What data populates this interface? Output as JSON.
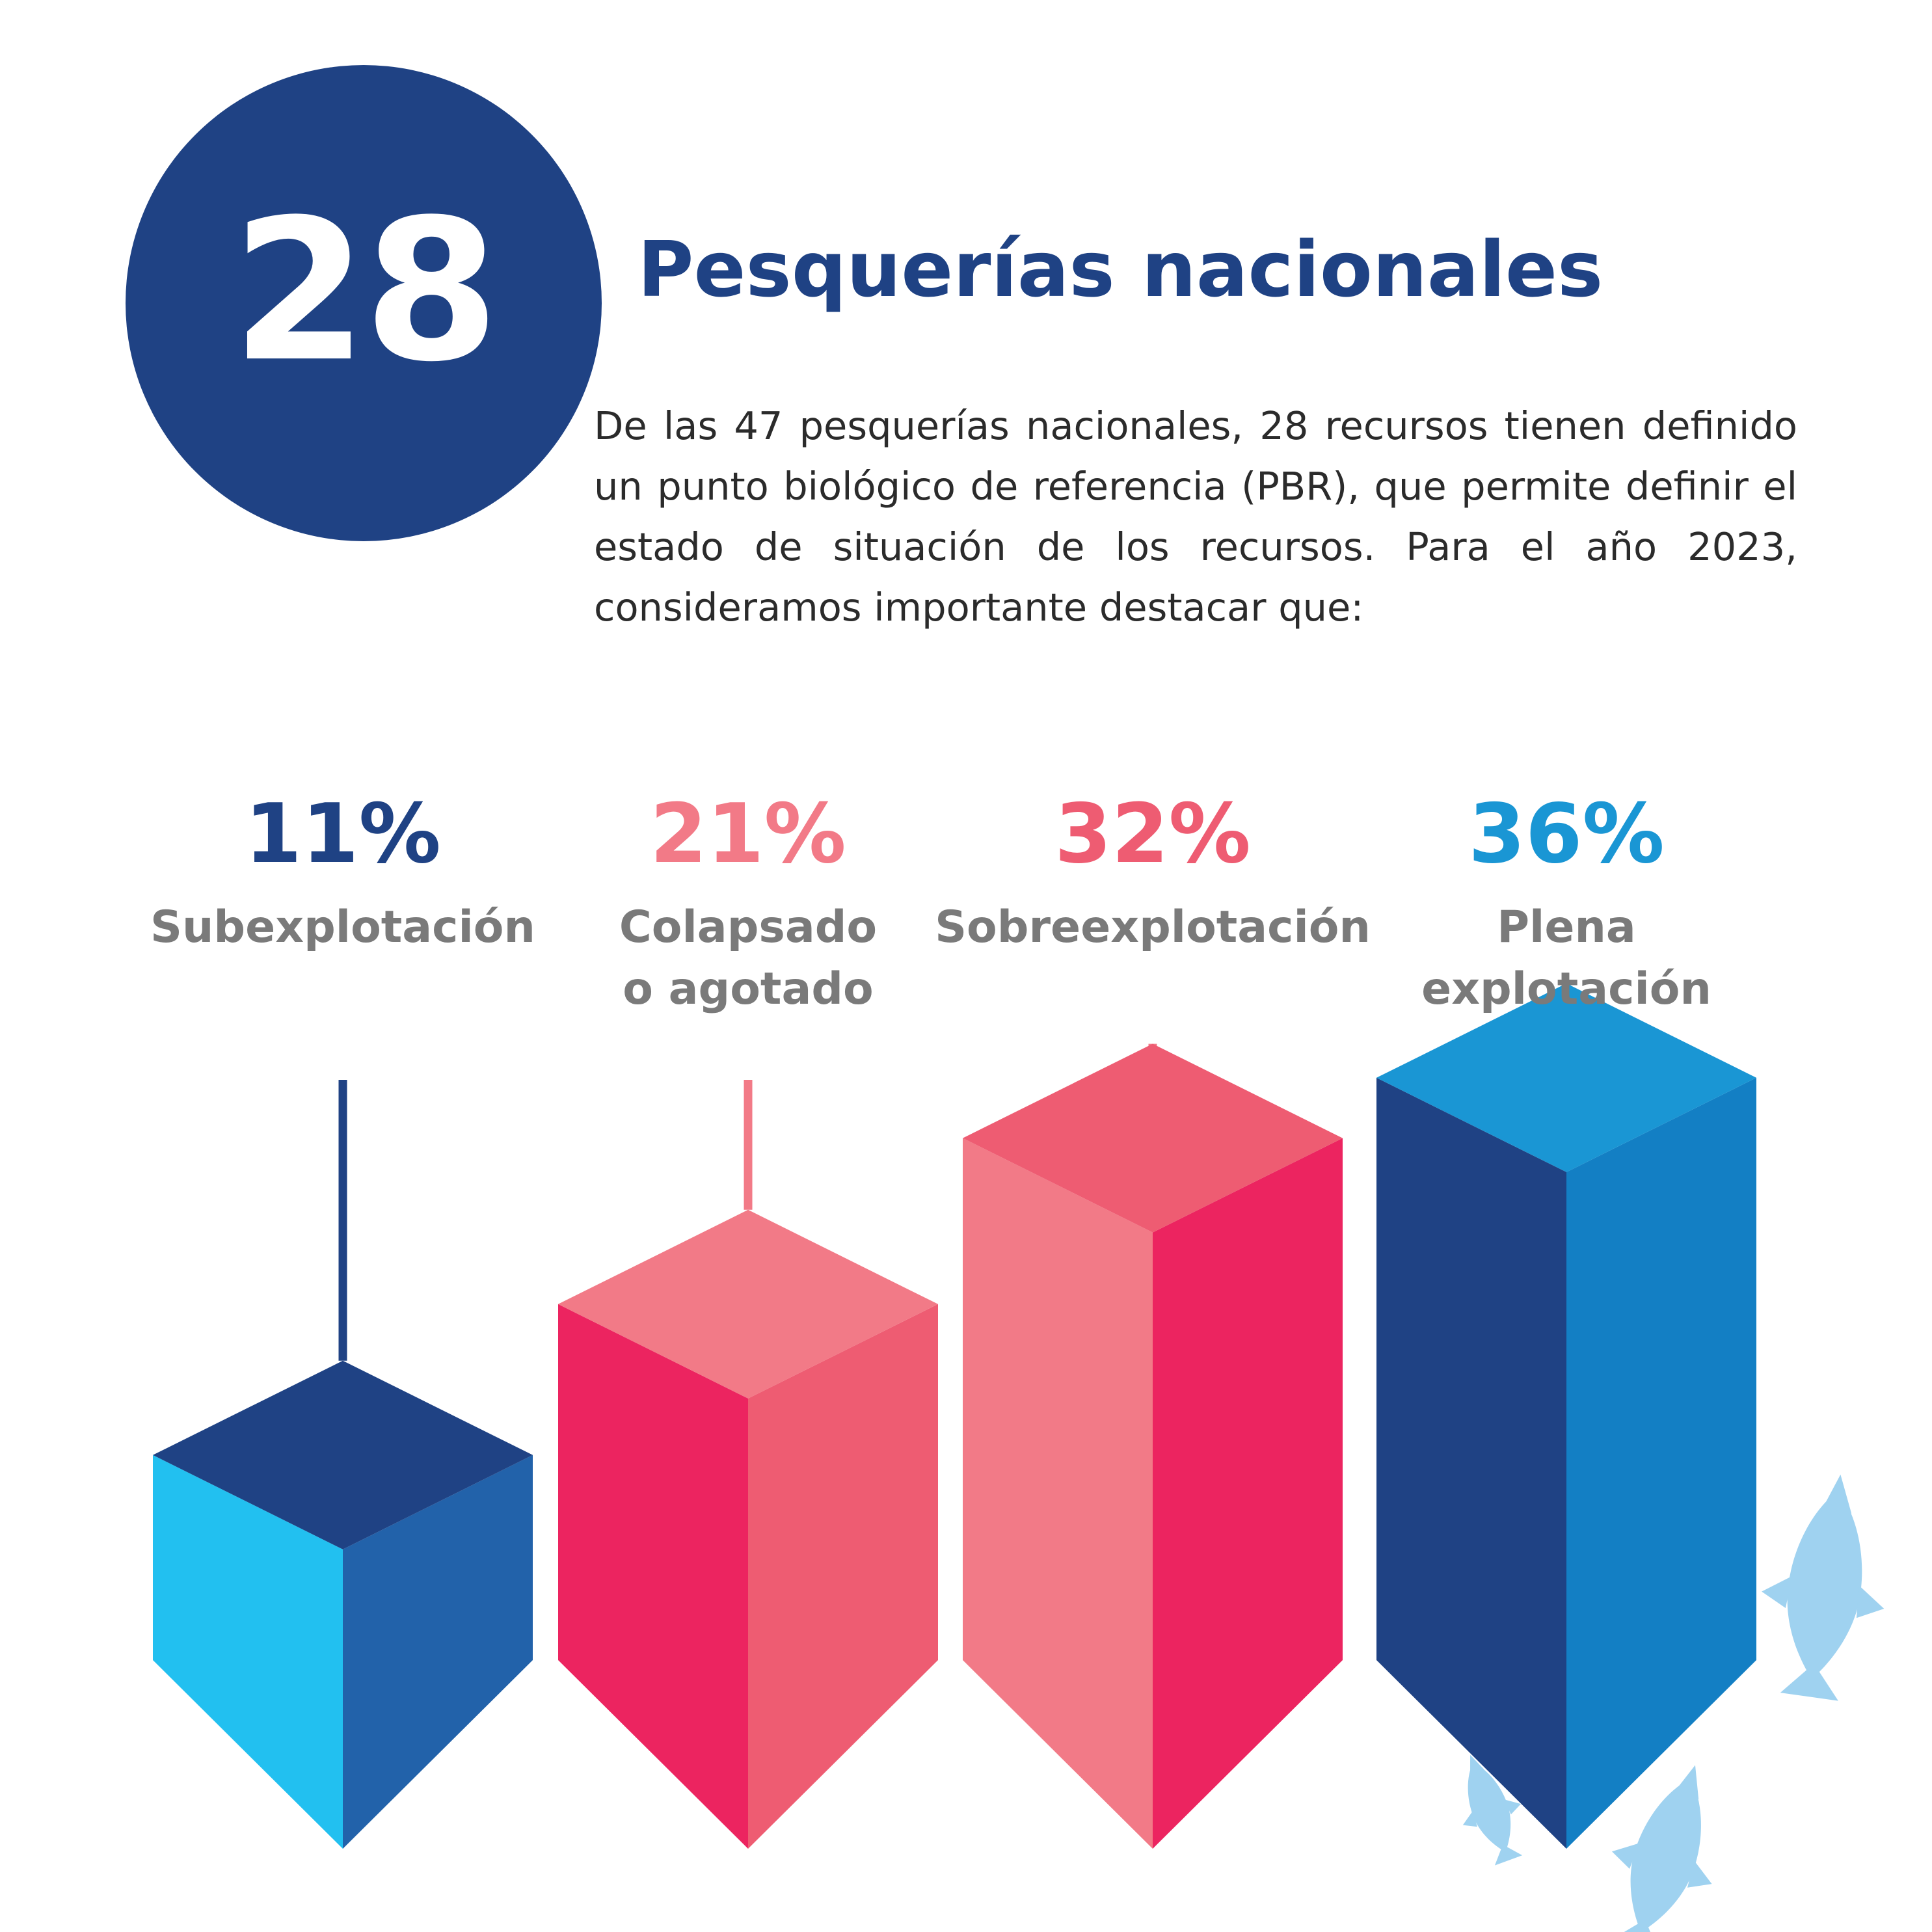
{
  "header": {
    "number": "28",
    "title": "Pesquerías nacionales",
    "description": "De las 47 pesquerías nacionales, 28 recursos tienen definido un punto biológico de referencia (PBR), que permite definir el estado de situación de los recursos. Para el año 2023, consideramos importante destacar que:"
  },
  "colors": {
    "navy": "#1f4284",
    "pink": "#f27a87",
    "red": "#ee5c72",
    "blue": "#1a96d4",
    "label_gray": "#7a7a7a",
    "fish": "#9fd2f0"
  },
  "chart_data": {
    "type": "bar",
    "categories": [
      "Subexplotación",
      "Colapsado o agotado",
      "Sobreexplotación",
      "Plena explotación"
    ],
    "category_lines": [
      [
        "Subexplotación"
      ],
      [
        "Colapsado",
        "o agotado"
      ],
      [
        "Sobreexplotación"
      ],
      [
        "Plena",
        "explotación"
      ]
    ],
    "values": [
      11,
      21,
      32,
      36
    ],
    "value_labels": [
      "11%",
      "21%",
      "32%",
      "36%"
    ],
    "unit": "%",
    "legend": "none",
    "grid": false,
    "palettes": [
      {
        "label": "#1f4284",
        "line": "#1f4284",
        "top": "#1f4284",
        "left": "#22c0f0",
        "right": "#2262aa"
      },
      {
        "label": "#f27a87",
        "line": "#f27a87",
        "top": "#f27a87",
        "left": "#ec2460",
        "right": "#ee5c72"
      },
      {
        "label": "#ee5c72",
        "line": "#f27a87",
        "top": "#ee5c72",
        "left": "#f27a87",
        "right": "#ec2460"
      },
      {
        "label": "#1a96d4",
        "line": "#1a96d4",
        "top": "#1a96d4",
        "left": "#1f4284",
        "right": "#137fc4"
      }
    ]
  }
}
